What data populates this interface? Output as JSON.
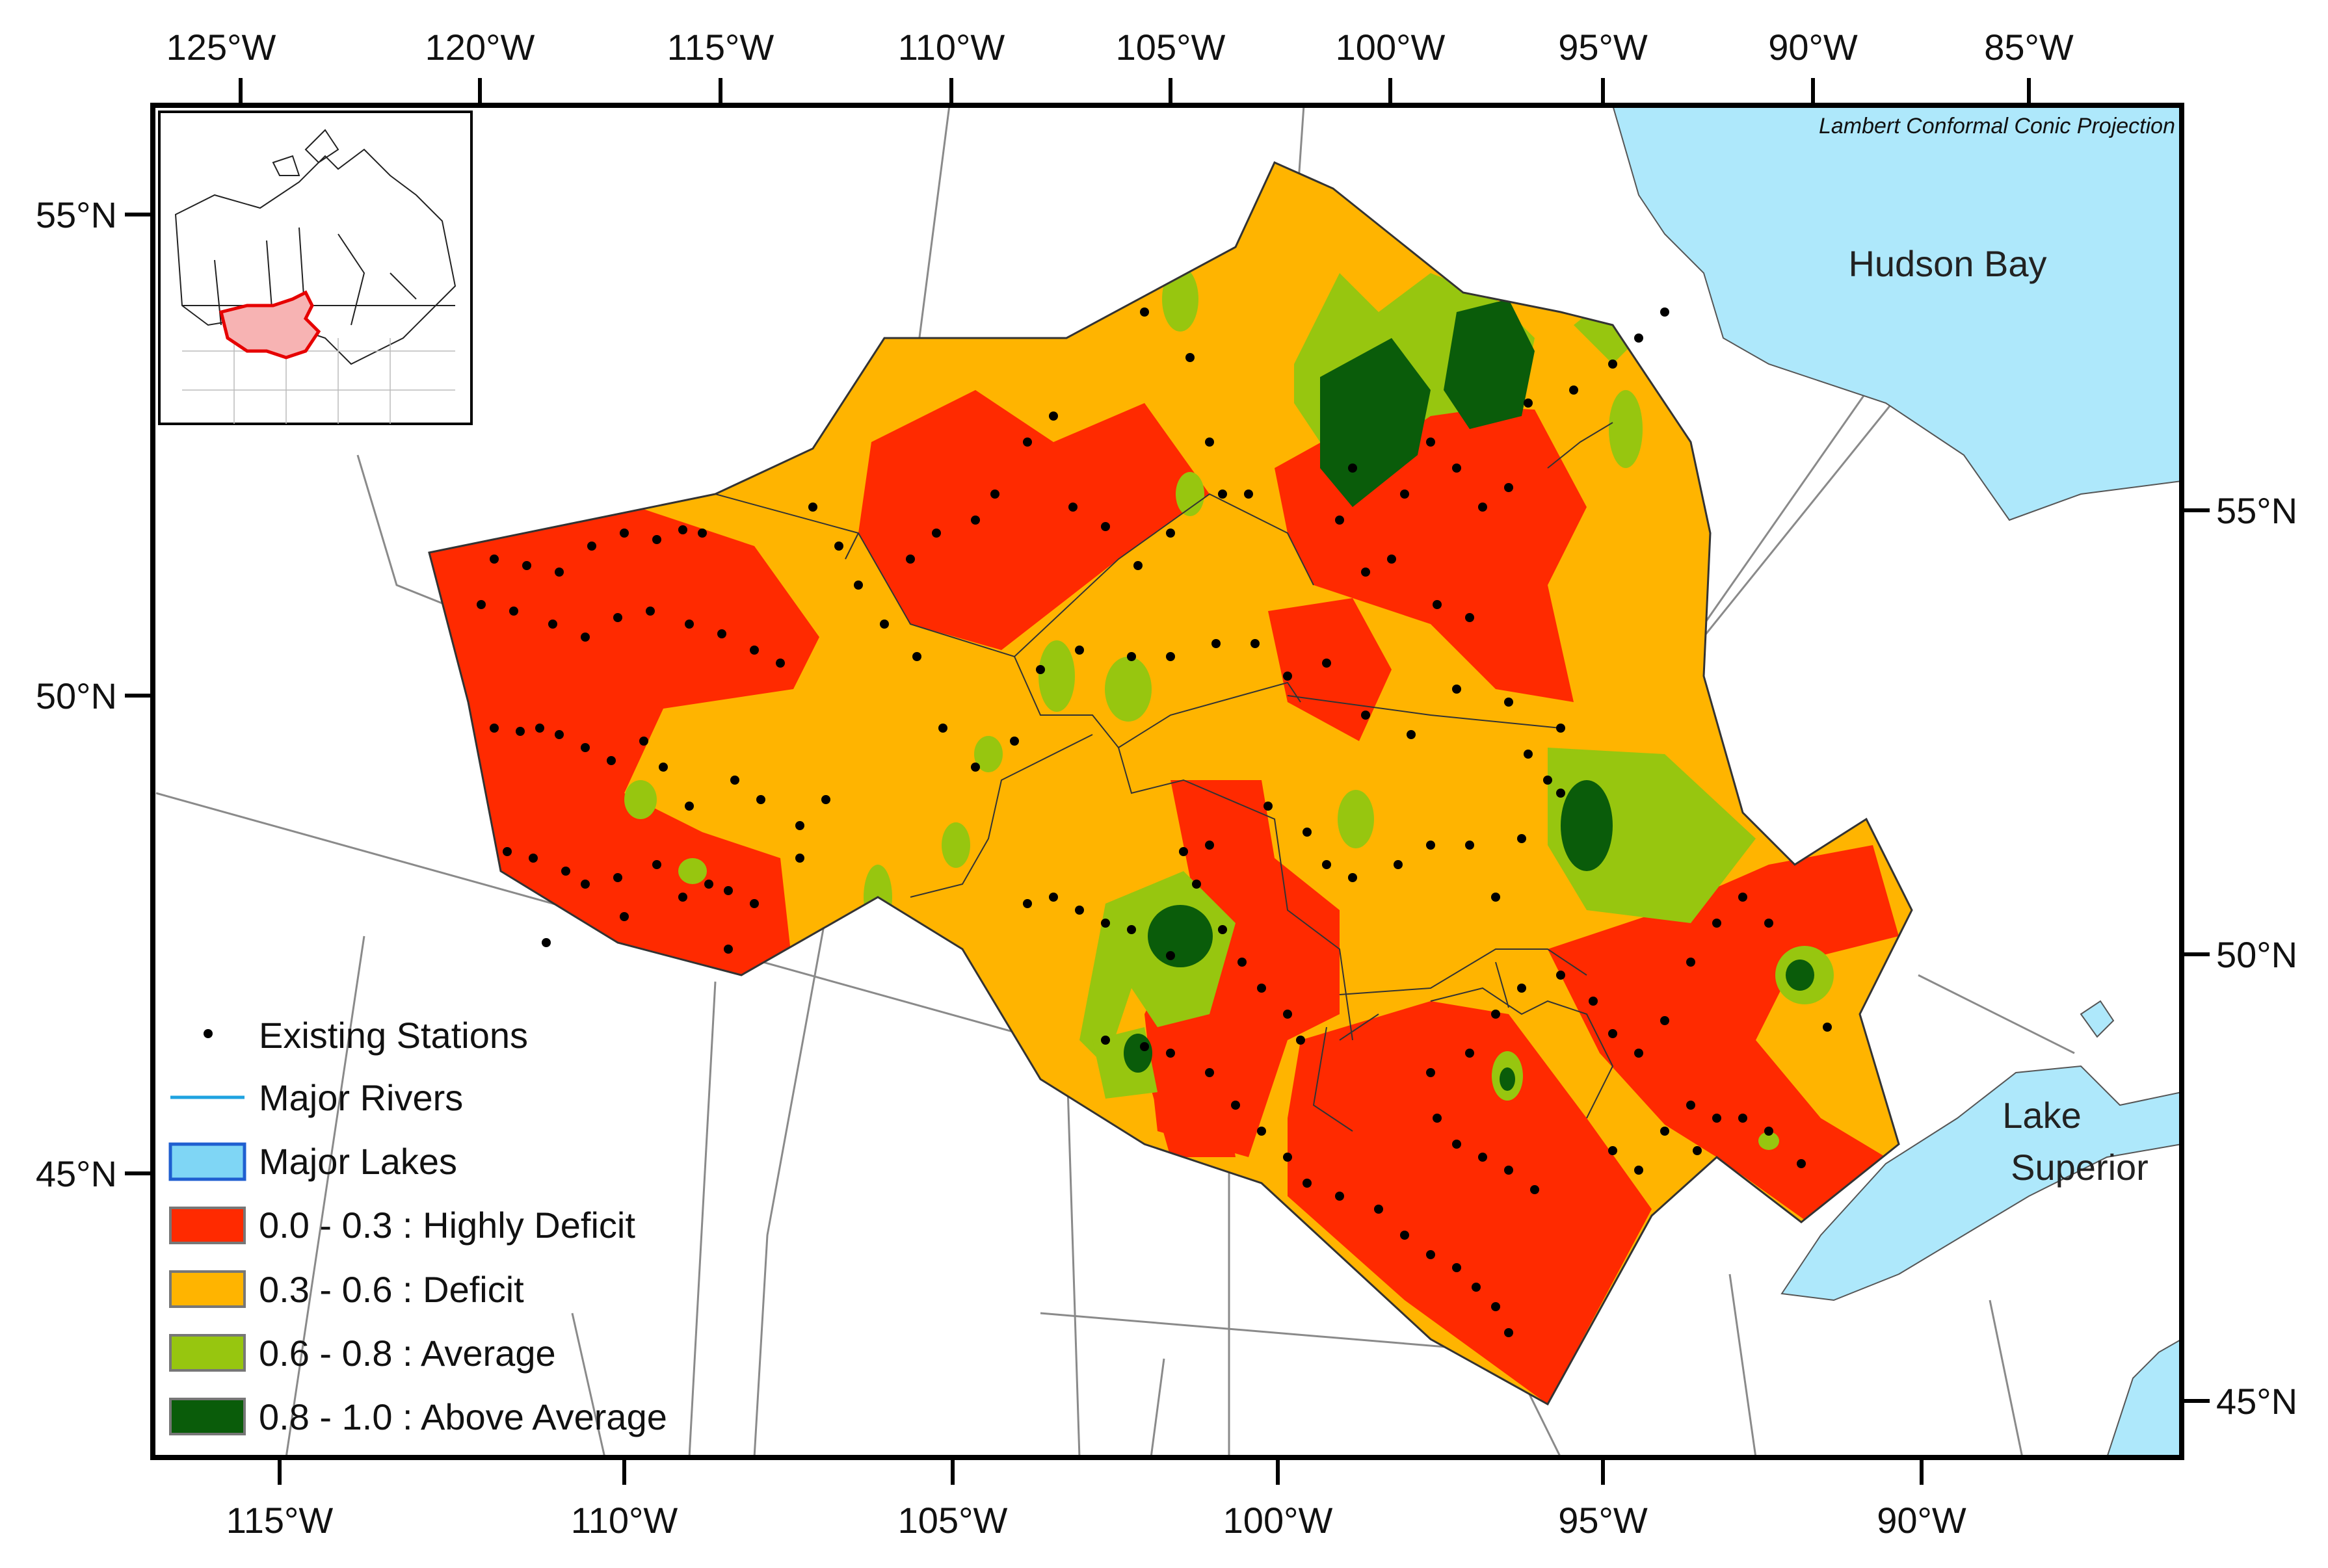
{
  "projection_label": "Lambert Conformal Conic Projection",
  "top_ticks": [
    "125°W",
    "120°W",
    "115°W",
    "110°W",
    "105°W",
    "100°W",
    "95°W",
    "90°W",
    "85°W"
  ],
  "bottom_ticks": [
    "115°W",
    "110°W",
    "105°W",
    "100°W",
    "95°W",
    "90°W"
  ],
  "left_ticks": [
    "55°N",
    "50°N",
    "45°N"
  ],
  "right_ticks": [
    "55°N",
    "50°N",
    "45°N"
  ],
  "water_labels": {
    "hudson_bay": "Hudson Bay",
    "lake_superior_line1": "Lake",
    "lake_superior_line2": "Superior"
  },
  "legend": [
    {
      "label": "Existing Stations",
      "symbol": "dot",
      "color": "#000000"
    },
    {
      "label": "Major Rivers",
      "symbol": "line",
      "color": "#1fa3e0"
    },
    {
      "label": "Major Lakes",
      "symbol": "box",
      "color": "#7fd6f5"
    },
    {
      "label": "0.0 - 0.3 : Highly Deficit",
      "symbol": "box",
      "color": "#ff2a00"
    },
    {
      "label": "0.3 - 0.6 : Deficit",
      "symbol": "box",
      "color": "#ffb400"
    },
    {
      "label": "0.6 - 0.8 : Average",
      "symbol": "box",
      "color": "#97c60f"
    },
    {
      "label": "0.8 - 1.0 : Above Average",
      "symbol": "box",
      "color": "#0a5c0a"
    }
  ],
  "colors": {
    "highly_deficit": "#ff2a00",
    "deficit": "#ffb400",
    "average": "#97c60f",
    "above_average": "#0a5c0a",
    "lake": "#aee8fb",
    "inset_region": "#f7b3b3",
    "inset_outline": "#e60000"
  }
}
